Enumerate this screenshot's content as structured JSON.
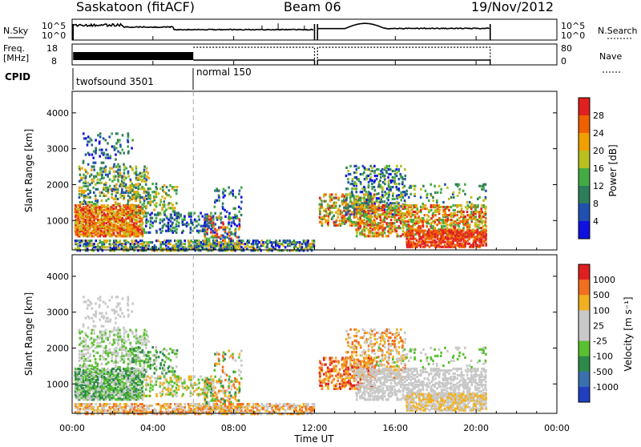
{
  "header": {
    "station": "Saskatoon (fitACF)",
    "beam": "Beam 06",
    "date": "19/Nov/2012"
  },
  "top_panels": {
    "nsky_label": "N.Sky",
    "nsky_ticks": [
      "10^5",
      "10^0"
    ],
    "nsearch_label": "N.Search",
    "nsearch_ticks": [
      "10^5",
      "10^0"
    ],
    "freq_label": "Freq.",
    "freq_unit": "[MHz]",
    "freq_ticks": [
      "18",
      "8"
    ],
    "nave_label": "Nave",
    "nave_ticks": [
      "80",
      "0"
    ],
    "cpid_label": "CPID",
    "cpid_segments": [
      {
        "name": "twofsound 3501",
        "start_hour": 0,
        "end_hour": 6
      },
      {
        "name": "normal 150",
        "start_hour": 6,
        "end_hour": 24
      }
    ]
  },
  "chart_data": [
    {
      "type": "heatmap",
      "name": "power-panel",
      "ylabel": "Slant Range [km]",
      "xlim": [
        0,
        24
      ],
      "ylim": [
        180,
        4600
      ],
      "yticks": [
        1000,
        2000,
        3000,
        4000
      ],
      "colorbar": {
        "label": "Power [dB]",
        "ticks": [
          "4",
          "8",
          "12",
          "16",
          "20",
          "24",
          "28"
        ],
        "colors": [
          "#1010e0",
          "#2050b0",
          "#2e7d5a",
          "#44aa44",
          "#b8c020",
          "#f0a000",
          "#ee6000",
          "#e02020"
        ]
      }
    },
    {
      "type": "heatmap",
      "name": "velocity-panel",
      "ylabel": "Slant Range [km]",
      "xlabel": "Time UT",
      "xlim": [
        0,
        24
      ],
      "ylim": [
        180,
        4600
      ],
      "yticks": [
        1000,
        2000,
        3000,
        4000
      ],
      "xticks": [
        "00:00",
        "04:00",
        "08:00",
        "12:00",
        "16:00",
        "20:00",
        "00:00"
      ],
      "colorbar": {
        "label": "Velocity [m s⁻¹]",
        "ticks": [
          "1000",
          "500",
          "100",
          "25",
          "-25",
          "-100",
          "-500",
          "-1000"
        ],
        "colors": [
          "#2040c0",
          "#3a70b0",
          "#2e8a4a",
          "#5ac030",
          "#c8c8c8",
          "#c8c8c8",
          "#f0b020",
          "#f07020",
          "#e02020"
        ]
      }
    }
  ],
  "palette": {
    "power": [
      "#1010e0",
      "#2050b0",
      "#2e7d5a",
      "#44aa44",
      "#b8c020",
      "#f0a000",
      "#ee6000",
      "#e02020"
    ],
    "velocity": [
      "#2040c0",
      "#3a70b0",
      "#2e8a4a",
      "#5ac030",
      "#c8c8c8",
      "#f0b020",
      "#f07020",
      "#e02020"
    ]
  }
}
